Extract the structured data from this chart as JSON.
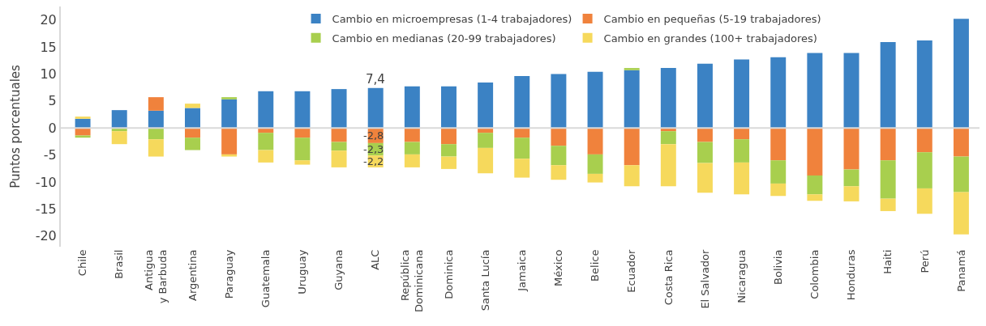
{
  "chart_data": {
    "type": "bar",
    "stacked": true,
    "ylabel": "Puntos porcentuales",
    "ylim": [
      -22,
      22.5
    ],
    "yticks": [
      -20,
      -15,
      -10,
      -5,
      0,
      5,
      10,
      15,
      20
    ],
    "grid": false,
    "legend": "top",
    "ref_lines": [
      {
        "axis": "y",
        "value": 0,
        "color": "#d9d9d9"
      }
    ],
    "categories": [
      "Chile",
      "Brasil",
      "Antigua\ny Barbuda",
      "Argentina",
      "Paraguay",
      "Guatemala",
      "Uruguay",
      "Guyana",
      "ALC",
      "República\nDominicana",
      "Dominica",
      "Santa Lucía",
      "Jamaica",
      "México",
      "Belice",
      "Ecuador",
      "Costa Rica",
      "El Salvador",
      "Nicaragua",
      "Bolivia",
      "Colombia",
      "Honduras",
      "Haiti",
      "Perú",
      "Panamá"
    ],
    "series": [
      {
        "name": "Cambio en microempresas (1-4 trabajadores)",
        "color": "#3b82c4",
        "values": [
          1.7,
          3.3,
          3.2,
          3.7,
          5.3,
          6.8,
          6.8,
          7.2,
          7.4,
          7.7,
          7.7,
          8.4,
          9.6,
          10.0,
          10.4,
          10.7,
          11.1,
          11.9,
          12.7,
          13.1,
          13.9,
          13.9,
          15.9,
          16.2,
          20.2
        ],
        "value_labels": [
          null,
          null,
          null,
          null,
          null,
          null,
          null,
          null,
          "7,4",
          null,
          null,
          null,
          null,
          null,
          null,
          null,
          null,
          null,
          null,
          null,
          null,
          null,
          null,
          null,
          null
        ]
      },
      {
        "name": "Cambio en pequeñas (5-19 trabajadores)",
        "color": "#f0823c",
        "values": [
          -1.4,
          0,
          2.5,
          -1.8,
          -4.9,
          -0.9,
          -1.8,
          -2.6,
          -2.8,
          -2.6,
          -3.0,
          -0.9,
          -1.8,
          -3.3,
          -4.9,
          -6.9,
          -0.6,
          -2.6,
          -2.1,
          -6.0,
          -8.8,
          -7.7,
          -6.0,
          -4.5,
          -5.3
        ],
        "value_labels": [
          null,
          null,
          null,
          null,
          null,
          null,
          null,
          null,
          "-2,8",
          null,
          null,
          null,
          null,
          null,
          null,
          null,
          null,
          null,
          null,
          null,
          null,
          null,
          null,
          null,
          null
        ]
      },
      {
        "name": "Cambio en medianas (20-99 trabajadores)",
        "color": "#a8cf4e",
        "values": [
          -0.4,
          -0.6,
          -2.1,
          -2.3,
          0.4,
          -3.2,
          -4.2,
          -1.6,
          -2.3,
          -2.3,
          -2.3,
          -2.8,
          -3.9,
          -3.6,
          -3.6,
          0.4,
          -2.4,
          -3.9,
          -4.3,
          -4.3,
          -3.5,
          -3.1,
          -7.1,
          -6.7,
          -6.6
        ],
        "value_labels": [
          null,
          null,
          null,
          null,
          null,
          null,
          null,
          null,
          "-2,3",
          null,
          null,
          null,
          null,
          null,
          null,
          null,
          null,
          null,
          null,
          null,
          null,
          null,
          null,
          null,
          null
        ]
      },
      {
        "name": "Cambio en grandes (100+ trabajadores)",
        "color": "#f6d95c",
        "values": [
          0.4,
          -2.4,
          -3.2,
          0.8,
          -0.4,
          -2.3,
          -0.8,
          -3.1,
          -2.2,
          -2.4,
          -2.3,
          -4.7,
          -3.5,
          -2.7,
          -1.6,
          -3.9,
          -7.8,
          -5.5,
          -5.9,
          -2.3,
          -1.2,
          -2.8,
          -2.3,
          -4.7,
          -7.8
        ],
        "value_labels": [
          null,
          null,
          null,
          null,
          null,
          null,
          null,
          null,
          "-2,2",
          null,
          null,
          null,
          null,
          null,
          null,
          null,
          null,
          null,
          null,
          null,
          null,
          null,
          null,
          null,
          null
        ]
      }
    ]
  }
}
